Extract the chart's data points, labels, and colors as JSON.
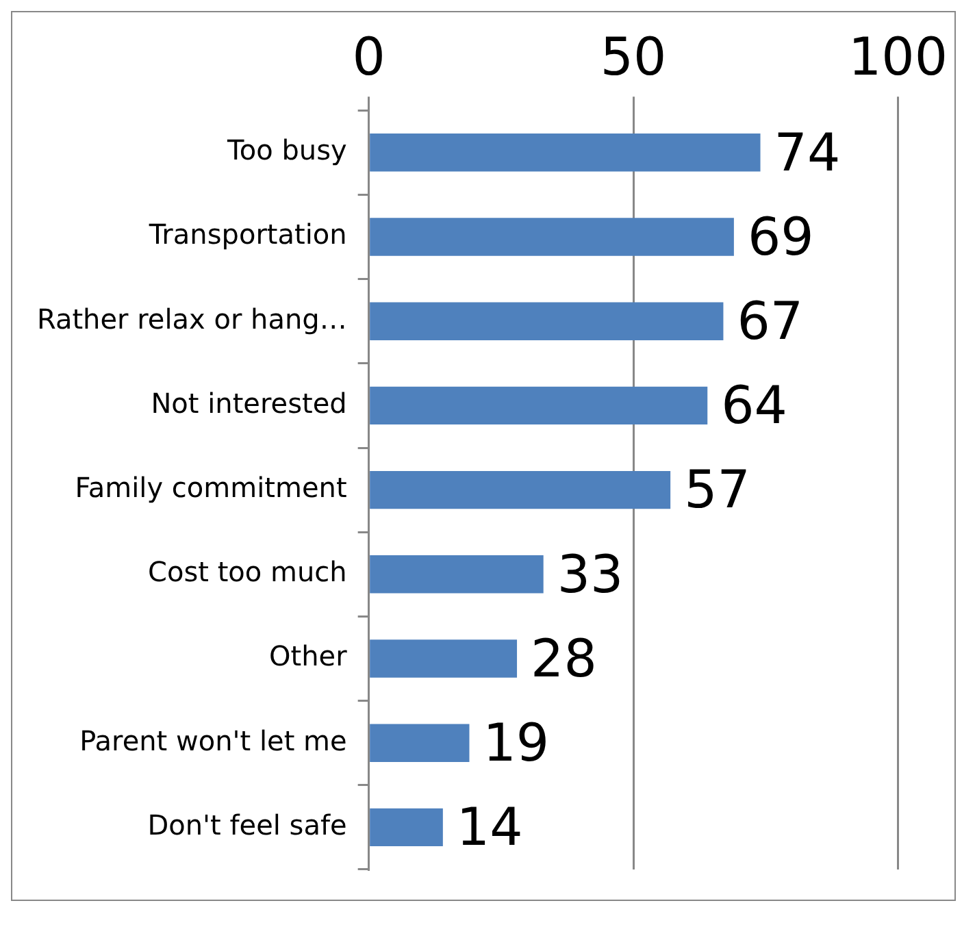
{
  "chart_data": {
    "type": "bar",
    "orientation": "horizontal",
    "categories": [
      "Too busy",
      "Transportation",
      "Rather relax or hang…",
      "Not interested",
      "Family commitment",
      "Cost too much",
      "Other",
      "Parent won't let me",
      "Don't feel safe"
    ],
    "values": [
      74,
      69,
      67,
      64,
      57,
      33,
      28,
      19,
      14
    ],
    "color": "#4f81bd",
    "xlim": [
      0,
      100
    ],
    "xticks": [
      0,
      50,
      100
    ],
    "grid": "x",
    "data_labels": true,
    "legend": false
  }
}
